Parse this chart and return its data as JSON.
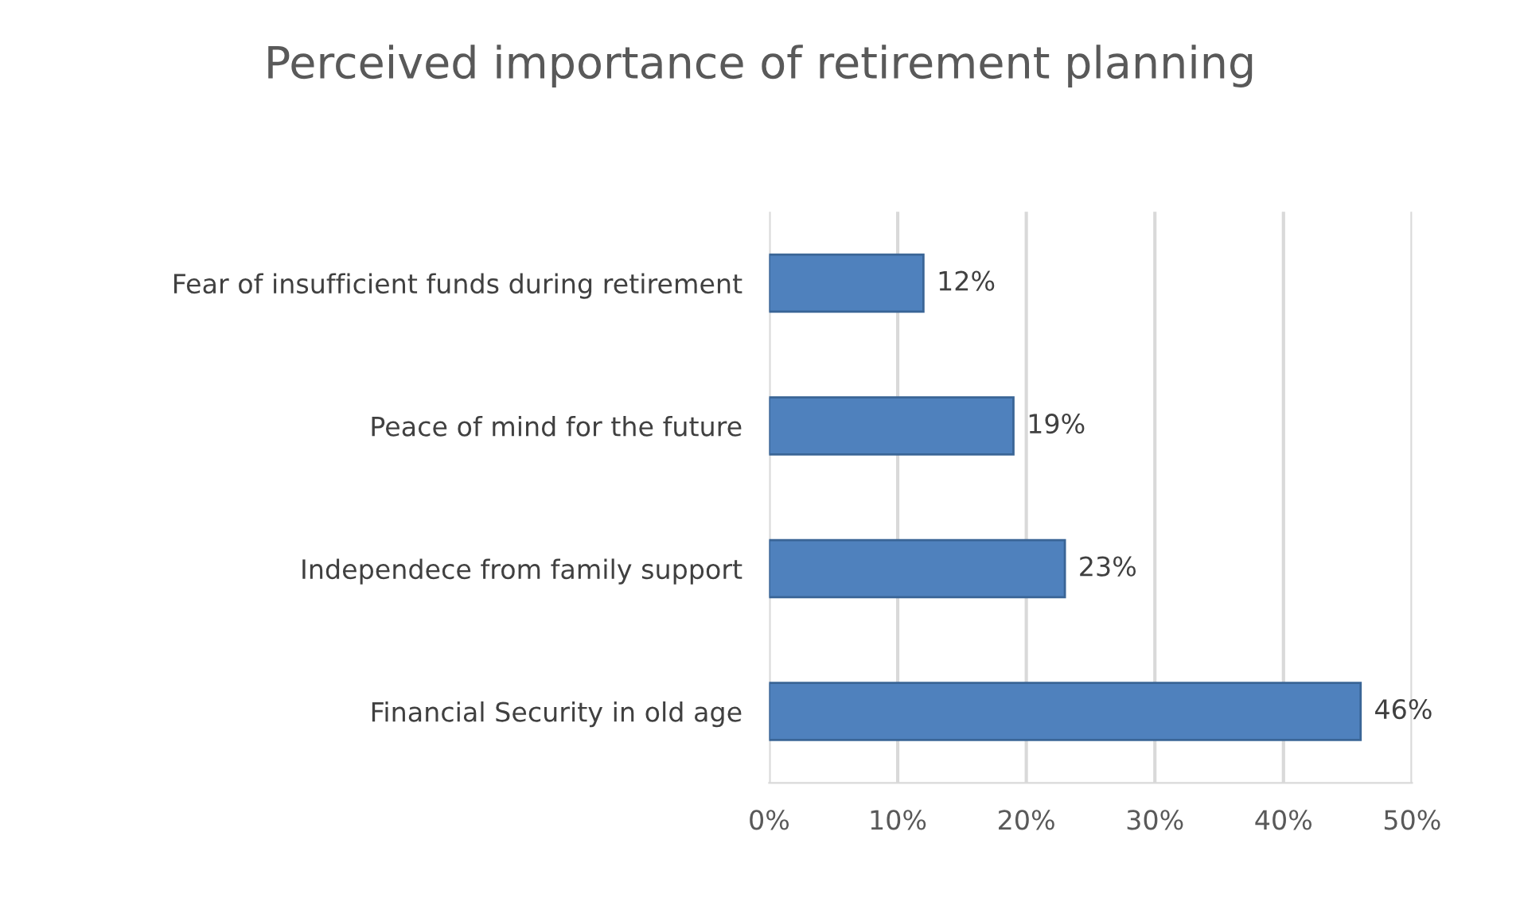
{
  "chart_data": {
    "type": "bar",
    "orientation": "horizontal",
    "title": "Perceived importance of retirement planning",
    "categories": [
      "Fear of insufficient funds during retirement",
      "Peace of mind for the future",
      "Independece from family support",
      "Financial Security in old age"
    ],
    "values": [
      12,
      19,
      23,
      46
    ],
    "value_labels": [
      "12%",
      "19%",
      "23%",
      "46%"
    ],
    "color": "#4f81bd",
    "xlim": [
      0,
      50
    ],
    "xticks": [
      {
        "value": 0,
        "label": "0%"
      },
      {
        "value": 10,
        "label": "10%"
      },
      {
        "value": 20,
        "label": "20%"
      },
      {
        "value": 30,
        "label": "30%"
      },
      {
        "value": 40,
        "label": "40%"
      },
      {
        "value": 50,
        "label": "50%"
      }
    ],
    "grid": "x",
    "legend": false
  }
}
